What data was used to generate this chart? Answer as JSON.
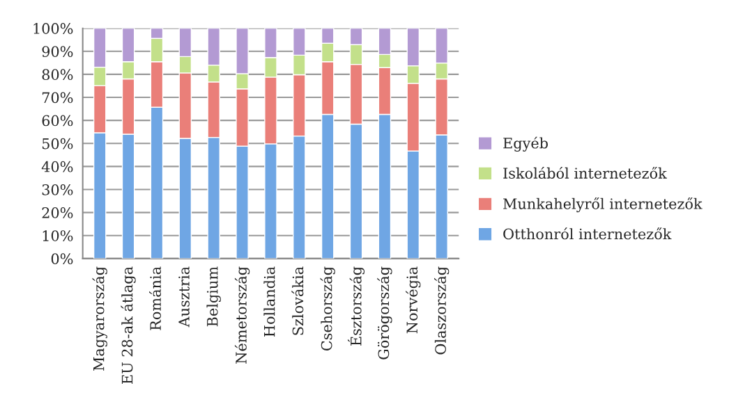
{
  "chart_data": {
    "type": "bar",
    "stacked": true,
    "categories": [
      "Magyarország",
      "EU 28-ak átlaga",
      "Románia",
      "Ausztria",
      "Belgium",
      "Németország",
      "Hollandia",
      "Szlovákia",
      "Csehország",
      "Észtország",
      "Görögország",
      "Norvégia",
      "Olaszország"
    ],
    "series": [
      {
        "name": "Otthonról internetezők",
        "color": "#6fa6e4",
        "values": [
          54.6,
          54.0,
          65.7,
          52.2,
          52.6,
          48.8,
          49.8,
          53.2,
          62.6,
          58.4,
          62.6,
          46.7,
          53.7
        ]
      },
      {
        "name": "Munkahelyről internetezők",
        "color": "#ea7f79",
        "values": [
          20.5,
          24.0,
          19.8,
          28.4,
          24.1,
          24.9,
          29.0,
          26.6,
          22.9,
          25.9,
          20.3,
          29.4,
          24.3
        ]
      },
      {
        "name": "Iskolából internetezők",
        "color": "#c3e08a",
        "values": [
          8.0,
          7.5,
          10.1,
          7.1,
          7.3,
          6.6,
          8.5,
          8.5,
          8.0,
          8.6,
          5.7,
          7.6,
          6.9
        ]
      },
      {
        "name": "Egyéb",
        "color": "#b39ad3",
        "values": [
          16.9,
          14.5,
          4.4,
          12.3,
          16.0,
          19.7,
          12.7,
          11.7,
          6.5,
          7.1,
          11.4,
          16.3,
          15.1
        ]
      }
    ],
    "ylim": [
      0,
      100
    ],
    "yticks": [
      {
        "value": 0,
        "label": "0%"
      },
      {
        "value": 10,
        "label": "10%"
      },
      {
        "value": 20,
        "label": "20%"
      },
      {
        "value": 30,
        "label": "30%"
      },
      {
        "value": 40,
        "label": "40%"
      },
      {
        "value": 50,
        "label": "50%"
      },
      {
        "value": 60,
        "label": "60%"
      },
      {
        "value": 70,
        "label": "70%"
      },
      {
        "value": 80,
        "label": "80%"
      },
      {
        "value": 90,
        "label": "90%"
      },
      {
        "value": 100,
        "label": "100%"
      }
    ],
    "grid": "y",
    "legend": "right"
  }
}
